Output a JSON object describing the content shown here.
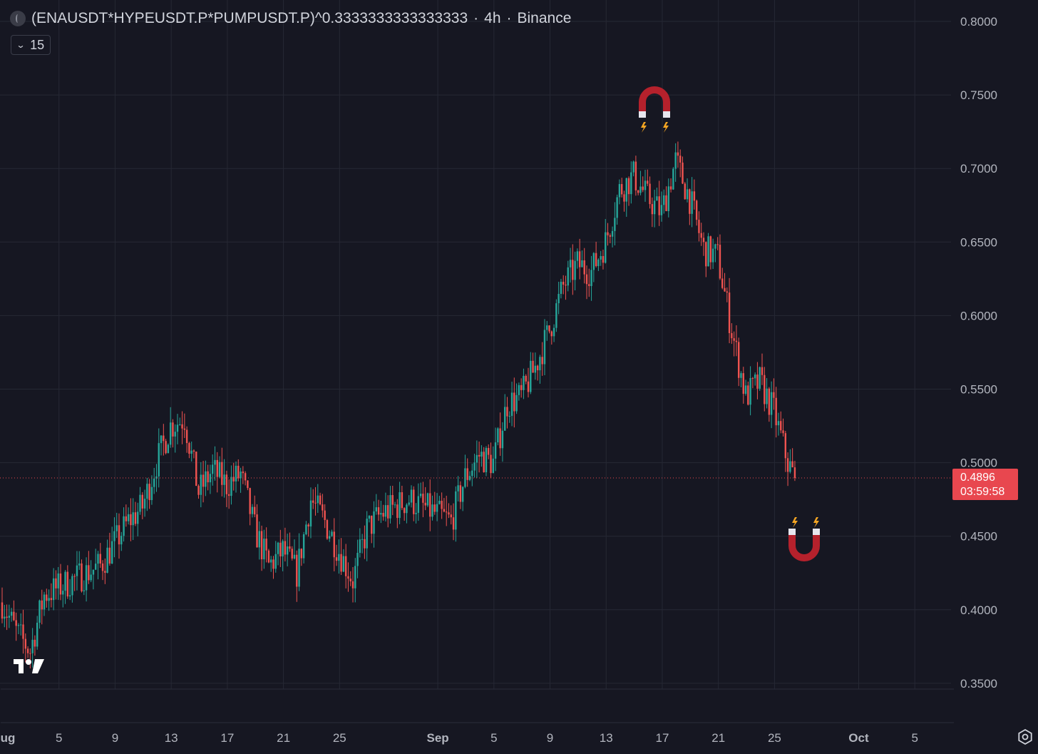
{
  "header": {
    "symbol": "(ENAUSDT*HYPEUSDT.P*PUMPUSDT.P)^0.3333333333333333",
    "separator1": "·",
    "interval": "4h",
    "separator2": "·",
    "exchange": "Binance"
  },
  "interval_dropdown": {
    "value": "15"
  },
  "last_price": {
    "price": "0.4896",
    "countdown": "03:59:58"
  },
  "colors": {
    "background": "#161722",
    "up": "#26a69a",
    "down": "#ef5350",
    "grid": "#262834",
    "price_line": "#e8474f"
  },
  "icons": [
    "magnet-icon-top",
    "magnet-icon-bottom",
    "tradingview-logo-icon",
    "settings-icon"
  ],
  "chart_data": {
    "type": "candlestick",
    "title": "",
    "y_ticks": [
      "0.8000",
      "0.7500",
      "0.7000",
      "0.6500",
      "0.6000",
      "0.5500",
      "0.5000",
      "0.4500",
      "0.4000",
      "0.3500"
    ],
    "x_ticks": [
      "ug",
      "5",
      "9",
      "13",
      "17",
      "21",
      "25",
      "Sep",
      "5",
      "9",
      "13",
      "17",
      "21",
      "25",
      "Oct",
      "5"
    ],
    "ylim": [
      0.35,
      0.8
    ],
    "xlim": [
      "Aug 1",
      "Oct 7"
    ],
    "grid": true,
    "last_price": 0.4896,
    "series": [
      {
        "name": "",
        "interval": "4h",
        "anchor_closes": [
          [
            "Aug 1",
            0.405
          ],
          [
            "Aug 2",
            0.385
          ],
          [
            "Aug 3",
            0.372
          ],
          [
            "Aug 4",
            0.41
          ],
          [
            "Aug 6",
            0.42
          ],
          [
            "Aug 8",
            0.43
          ],
          [
            "Aug 10",
            0.46
          ],
          [
            "Aug 11",
            0.47
          ],
          [
            "Aug 12",
            0.5
          ],
          [
            "Aug 13",
            0.525
          ],
          [
            "Aug 14",
            0.53
          ],
          [
            "Aug 15",
            0.48
          ],
          [
            "Aug 16",
            0.495
          ],
          [
            "Aug 17",
            0.485
          ],
          [
            "Aug 18",
            0.492
          ],
          [
            "Aug 19",
            0.455
          ],
          [
            "Aug 20",
            0.43
          ],
          [
            "Aug 21",
            0.44
          ],
          [
            "Aug 22",
            0.425
          ],
          [
            "Aug 23",
            0.475
          ],
          [
            "Aug 24",
            0.46
          ],
          [
            "Aug 25",
            0.44
          ],
          [
            "Aug 26",
            0.42
          ],
          [
            "Aug 27",
            0.455
          ],
          [
            "Aug 28",
            0.465
          ],
          [
            "Aug 29",
            0.47
          ],
          [
            "Aug 30",
            0.475
          ],
          [
            "Aug 31",
            0.47
          ],
          [
            "Sep 1",
            0.465
          ],
          [
            "Sep 2",
            0.46
          ],
          [
            "Sep 3",
            0.49
          ],
          [
            "Sep 4",
            0.505
          ],
          [
            "Sep 5",
            0.5
          ],
          [
            "Sep 6",
            0.54
          ],
          [
            "Sep 7",
            0.545
          ],
          [
            "Sep 8",
            0.565
          ],
          [
            "Sep 9",
            0.59
          ],
          [
            "Sep 10",
            0.62
          ],
          [
            "Sep 11",
            0.635
          ],
          [
            "Sep 12",
            0.63
          ],
          [
            "Sep 13",
            0.65
          ],
          [
            "Sep 14",
            0.685
          ],
          [
            "Sep 15",
            0.695
          ],
          [
            "Sep 16",
            0.68
          ],
          [
            "Sep 17",
            0.67
          ],
          [
            "Sep 18",
            0.705
          ],
          [
            "Sep 19",
            0.68
          ],
          [
            "Sep 20",
            0.645
          ],
          [
            "Sep 21",
            0.64
          ],
          [
            "Sep 22",
            0.59
          ],
          [
            "Sep 23",
            0.545
          ],
          [
            "Sep 24",
            0.555
          ],
          [
            "Sep 25",
            0.535
          ],
          [
            "Sep 26",
            0.5
          ],
          [
            "Sep 26.5",
            0.4896
          ]
        ]
      }
    ],
    "annotations": [
      "magnet above peak (~Sep 16)",
      "magnet below last price (~Sep 27)"
    ]
  }
}
